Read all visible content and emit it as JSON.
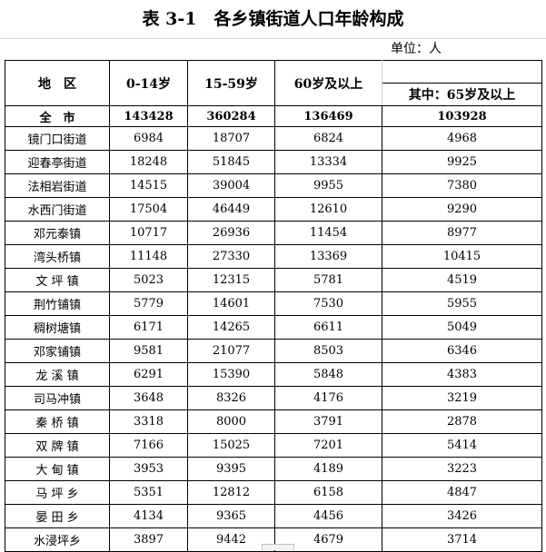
{
  "title": "表 3-1　各乡镇街道人口年龄构成",
  "unit": "单位：人",
  "columns": {
    "region": "地　区",
    "age_0_14": "0-14岁",
    "age_15_59": "15-59岁",
    "age_60_plus": "60岁及以上",
    "age_65_plus": "其中：65岁及以上"
  },
  "total": {
    "name": "全　市",
    "a": "143428",
    "b": "360284",
    "c": "136469",
    "d": "103928"
  },
  "rows": [
    {
      "name": "镜门口街道",
      "a": "6984",
      "b": "18707",
      "c": "6824",
      "d": "4968"
    },
    {
      "name": "迎春亭街道",
      "a": "18248",
      "b": "51845",
      "c": "13334",
      "d": "9925"
    },
    {
      "name": "法相岩街道",
      "a": "14515",
      "b": "39004",
      "c": "9955",
      "d": "7380"
    },
    {
      "name": "水西门街道",
      "a": "17504",
      "b": "46449",
      "c": "12610",
      "d": "9290"
    },
    {
      "name": "邓元泰镇",
      "a": "10717",
      "b": "26936",
      "c": "11454",
      "d": "8977"
    },
    {
      "name": "湾头桥镇",
      "a": "11148",
      "b": "27330",
      "c": "13369",
      "d": "10415"
    },
    {
      "name": "文 坪 镇",
      "a": "5023",
      "b": "12315",
      "c": "5781",
      "d": "4519"
    },
    {
      "name": "荆竹铺镇",
      "a": "5779",
      "b": "14601",
      "c": "7530",
      "d": "5955"
    },
    {
      "name": "稠树塘镇",
      "a": "6171",
      "b": "14265",
      "c": "6611",
      "d": "5049"
    },
    {
      "name": "邓家铺镇",
      "a": "9581",
      "b": "21077",
      "c": "8503",
      "d": "6346"
    },
    {
      "name": "龙 溪 镇",
      "a": "6291",
      "b": "15390",
      "c": "5848",
      "d": "4383"
    },
    {
      "name": "司马冲镇",
      "a": "3648",
      "b": "8326",
      "c": "4176",
      "d": "3219"
    },
    {
      "name": "秦 桥 镇",
      "a": "3318",
      "b": "8000",
      "c": "3791",
      "d": "2878"
    },
    {
      "name": "双 牌 镇",
      "a": "7166",
      "b": "15025",
      "c": "7201",
      "d": "5414"
    },
    {
      "name": "大 甸 镇",
      "a": "3953",
      "b": "9395",
      "c": "4189",
      "d": "3223"
    },
    {
      "name": "马 坪 乡",
      "a": "5351",
      "b": "12812",
      "c": "6158",
      "d": "4847"
    },
    {
      "name": "晏 田 乡",
      "a": "4134",
      "b": "9365",
      "c": "4456",
      "d": "3426"
    },
    {
      "name": "水浸坪乡",
      "a": "3897",
      "b": "9442",
      "c": "4679",
      "d": "3714"
    }
  ]
}
